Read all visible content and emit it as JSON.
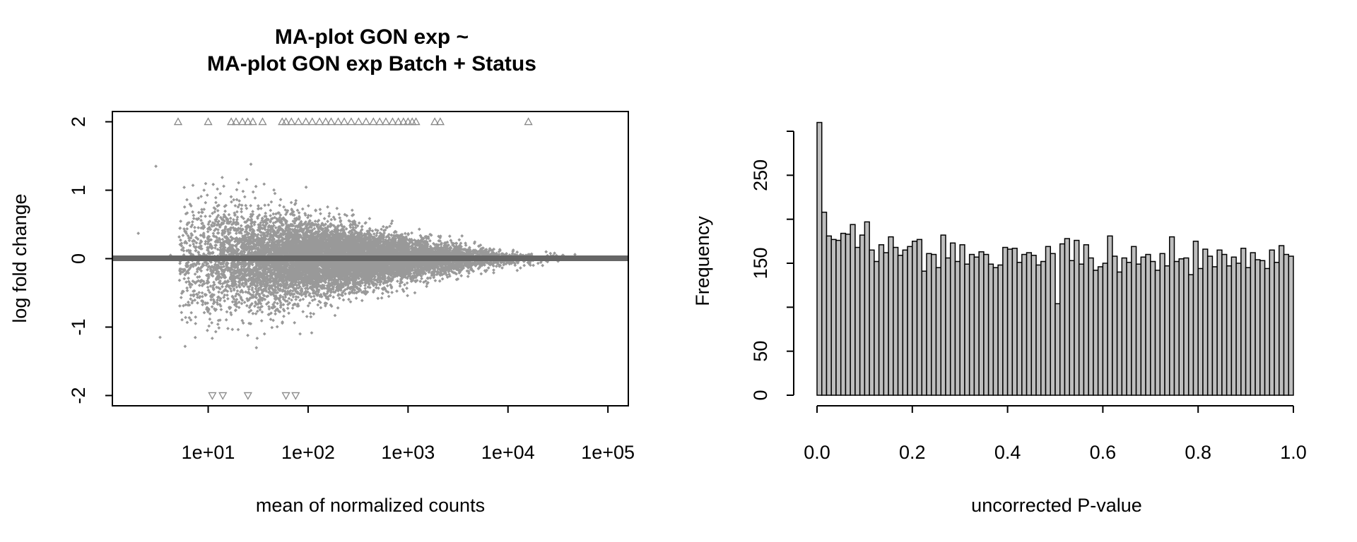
{
  "chart_data": [
    {
      "type": "scatter",
      "title_lines": [
        "MA-plot GON exp ~",
        "MA-plot GON exp Batch + Status"
      ],
      "xlabel": "mean of normalized counts",
      "ylabel": "log fold change",
      "x_scale": "log10",
      "xlim": [
        1.1,
        160000
      ],
      "ylim": [
        -2.15,
        2.15
      ],
      "x_ticks": [
        10,
        100,
        1000,
        10000,
        100000
      ],
      "x_tick_labels": [
        "1e+01",
        "1e+02",
        "1e+03",
        "1e+04",
        "1e+05"
      ],
      "y_ticks": [
        -2,
        -1,
        0,
        1,
        2
      ],
      "y_tick_labels": [
        "-2",
        "-1",
        "0",
        "1",
        "2"
      ],
      "point_color": "#999999",
      "zero_line_color": "#666666",
      "grid": false,
      "outliers_high": {
        "y": 2,
        "marker": "triangle-up",
        "x": [
          5,
          10,
          17,
          19,
          22,
          25,
          28,
          35,
          55,
          60,
          68,
          80,
          95,
          110,
          130,
          150,
          170,
          200,
          230,
          270,
          320,
          380,
          450,
          520,
          600,
          700,
          800,
          900,
          1000,
          1100,
          1200,
          1850,
          2100,
          16000
        ]
      },
      "outliers_low": {
        "y": -2,
        "marker": "triangle-down",
        "x": [
          11,
          14,
          25,
          60,
          75
        ]
      },
      "scatter_summary": {
        "n_points": 11000,
        "x_range": [
          5,
          60000
        ],
        "log10_x_mean": 2.3,
        "log10_x_sd": 0.75,
        "y_spread_at_low_counts": 0.45,
        "y_spread_at_high_counts": 0.03,
        "sparse_points": [
          [
            2,
            0.37
          ],
          [
            3,
            1.35
          ],
          [
            3.3,
            -1.15
          ],
          [
            4.2,
            0.05
          ]
        ]
      }
    },
    {
      "type": "bar",
      "subtype": "histogram",
      "xlabel": "uncorrected P-value",
      "ylabel": "Frequency",
      "xlim": [
        0,
        1
      ],
      "ylim": [
        0,
        300
      ],
      "x_ticks": [
        0,
        0.2,
        0.4,
        0.6,
        0.8,
        1.0
      ],
      "x_tick_labels": [
        "0.0",
        "0.2",
        "0.4",
        "0.6",
        "0.8",
        "1.0"
      ],
      "y_ticks": [
        0,
        50,
        150,
        250
      ],
      "y_tick_labels": [
        "0",
        "50",
        "150",
        "250"
      ],
      "y_axis_extent": [
        0,
        300
      ],
      "bar_fill": "#bebebe",
      "bar_edge": "#000000",
      "bin_width": 0.01,
      "values": [
        310,
        208,
        181,
        177,
        176,
        184,
        183,
        194,
        168,
        182,
        197,
        165,
        152,
        171,
        162,
        180,
        168,
        159,
        165,
        169,
        175,
        177,
        141,
        161,
        160,
        145,
        182,
        156,
        173,
        152,
        171,
        149,
        160,
        157,
        163,
        160,
        149,
        145,
        148,
        168,
        166,
        167,
        151,
        160,
        162,
        159,
        148,
        152,
        169,
        161,
        104,
        172,
        178,
        153,
        176,
        149,
        171,
        156,
        142,
        146,
        150,
        181,
        158,
        140,
        156,
        151,
        169,
        149,
        157,
        160,
        152,
        142,
        161,
        147,
        180,
        152,
        155,
        156,
        137,
        175,
        144,
        166,
        158,
        146,
        165,
        160,
        147,
        157,
        150,
        167,
        145,
        162,
        154,
        153,
        144,
        165,
        151,
        170,
        160,
        158
      ]
    }
  ]
}
